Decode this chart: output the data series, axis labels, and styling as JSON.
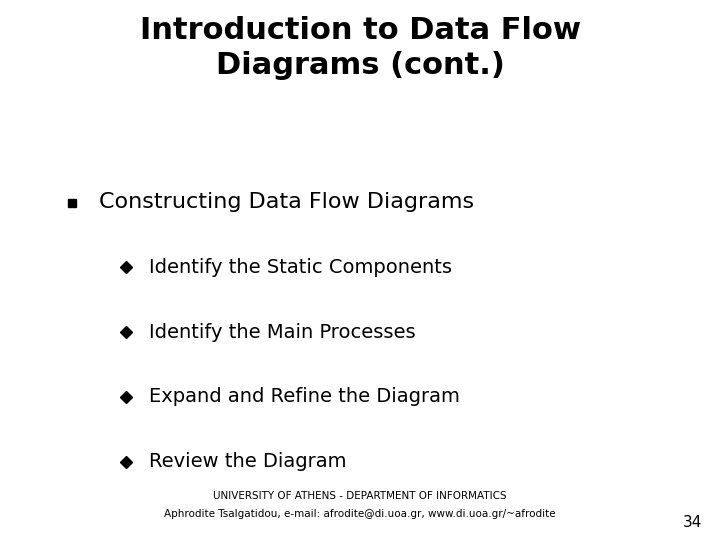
{
  "title_line1": "Introduction to Data Flow",
  "title_line2": "Diagrams (cont.)",
  "bullet_main": "Constructing Data Flow Diagrams",
  "sub_bullets": [
    "Identify the Static Components",
    "Identify the Main Processes",
    "Expand and Refine the Diagram",
    "Review the Diagram"
  ],
  "footer_line1": "UNIVERSITY OF ATHENS - DEPARTMENT OF INFORMATICS",
  "footer_line2": "Aphrodite Tsalgatidou, e-mail: afrodite@di.uoa.gr, www.di.uoa.gr/~afrodite",
  "page_number": "34",
  "bg_color": "#ffffff",
  "text_color": "#000000",
  "title_fontsize": 22,
  "main_bullet_fontsize": 16,
  "sub_bullet_fontsize": 14,
  "footer_fontsize": 7.5,
  "page_num_fontsize": 11
}
